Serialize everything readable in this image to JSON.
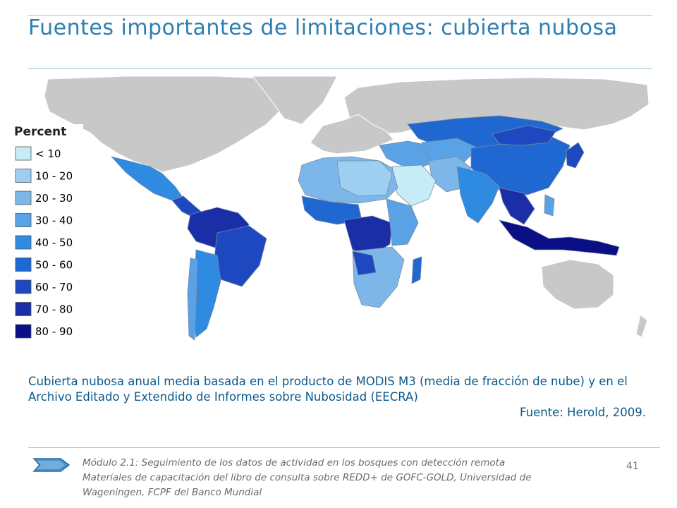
{
  "slide": {
    "title": "Fuentes importantes de limitaciones: cubierta nubosa",
    "caption": "Cubierta nubosa anual media basada en el producto de MODIS M3 (media de fracción de nube) y en el Archivo Editado y Extendido de Informes sobre Nubosidad (EECRA)",
    "source": "Fuente: Herold, 2009.",
    "footer_line1": "Módulo 2.1: Seguimiento de los datos de actividad en los bosques con detección remota",
    "footer_line2": "Materiales de capacitación del libro de consulta sobre REDD+ de GOFC-GOLD, Universidad de Wageningen, FCPF del Banco Mundial",
    "page_number": "41"
  },
  "map": {
    "legend_title": "Percent",
    "no_data_color": "#c8c8c8",
    "legend": [
      {
        "label": "< 10",
        "color": "#c6ecf8"
      },
      {
        "label": "10 - 20",
        "color": "#9dd0f0"
      },
      {
        "label": "20 - 30",
        "color": "#7db7ea"
      },
      {
        "label": "30 - 40",
        "color": "#5aa2e6"
      },
      {
        "label": "40 - 50",
        "color": "#2f8ae2"
      },
      {
        "label": "50 - 60",
        "color": "#1f68d2"
      },
      {
        "label": "60 - 70",
        "color": "#1d48bf"
      },
      {
        "label": "70 - 80",
        "color": "#1a2ea8"
      },
      {
        "label": "80 - 90",
        "color": "#0b0f85"
      }
    ]
  }
}
